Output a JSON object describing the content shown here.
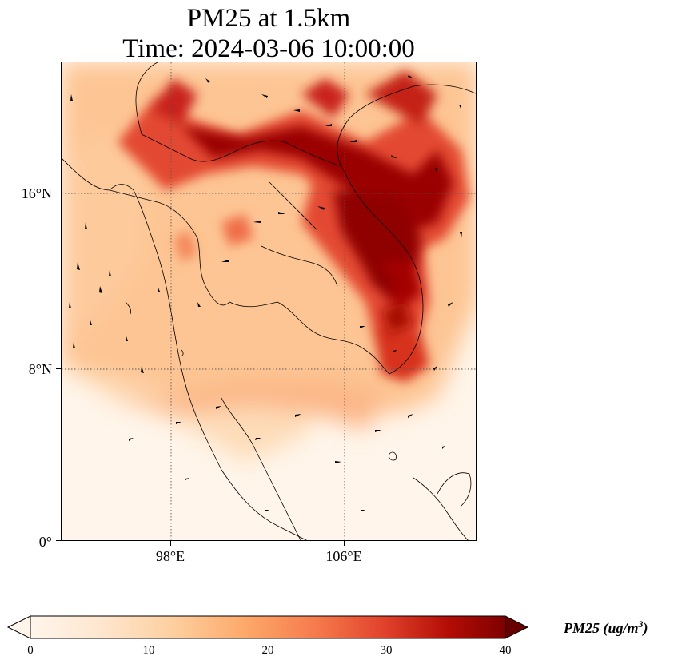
{
  "title": {
    "line1": "PM25 at 1.5km",
    "line2": "Time: 2024-03-06 10:00:00"
  },
  "axes": {
    "lat_ticks": [
      "16°N",
      "8°N",
      "0°"
    ],
    "lon_ticks": [
      "98°E",
      "106°E"
    ]
  },
  "colorbar": {
    "label_main": "PM25 (ug/m",
    "label_sup": "3",
    "label_end": ")",
    "ticks": [
      "0",
      "10",
      "20",
      "30",
      "40"
    ],
    "range": [
      0,
      40
    ],
    "extend": "both",
    "colormap": [
      "#fff5eb",
      "#fdd9b4",
      "#fdb27f",
      "#f98454",
      "#e8532f",
      "#c21b0b",
      "#8b0000",
      "#670000"
    ]
  },
  "chart_data": {
    "type": "heatmap",
    "variable": "PM25",
    "units": "ug/m3",
    "level": "1.5km",
    "time": "2024-03-06 10:00:00",
    "lon_range": [
      93,
      112
    ],
    "lat_range": [
      0,
      22
    ],
    "gridlines": "dotted",
    "overlay": "wind vectors, coastlines, country borders"
  }
}
